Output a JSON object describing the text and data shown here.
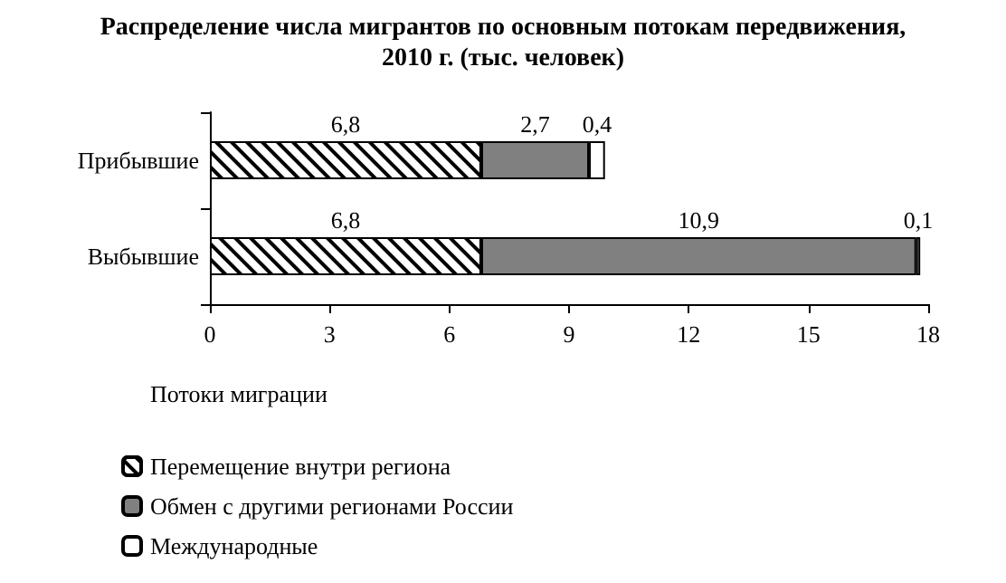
{
  "chart_data": {
    "type": "bar",
    "orientation": "horizontal",
    "stacked": true,
    "title": "Распределение числа мигрантов по основным потокам передвижения,\n2010 г. (тыс. человек)",
    "legend_title": "Потоки миграции",
    "categories": [
      "Прибывшие",
      "Выбывшие"
    ],
    "series": [
      {
        "name": "Перемещение внутри региона",
        "color": "#ffffff",
        "values": [
          6.8,
          6.8
        ],
        "value_labels": [
          "6,8",
          "6,8"
        ]
      },
      {
        "name": "Обмен с другими регионами России",
        "color": "#808080",
        "values": [
          2.7,
          10.9
        ],
        "value_labels": [
          "2,7",
          "10,9"
        ]
      },
      {
        "name": "Международные",
        "color": "#ffffff",
        "values": [
          0.4,
          0.1
        ],
        "value_labels": [
          "0,4",
          "0,1"
        ]
      }
    ],
    "xlim": [
      0,
      18
    ],
    "xticks": [
      0,
      3,
      6,
      9,
      12,
      15,
      18
    ],
    "grid": false,
    "legend": "bottom left"
  }
}
